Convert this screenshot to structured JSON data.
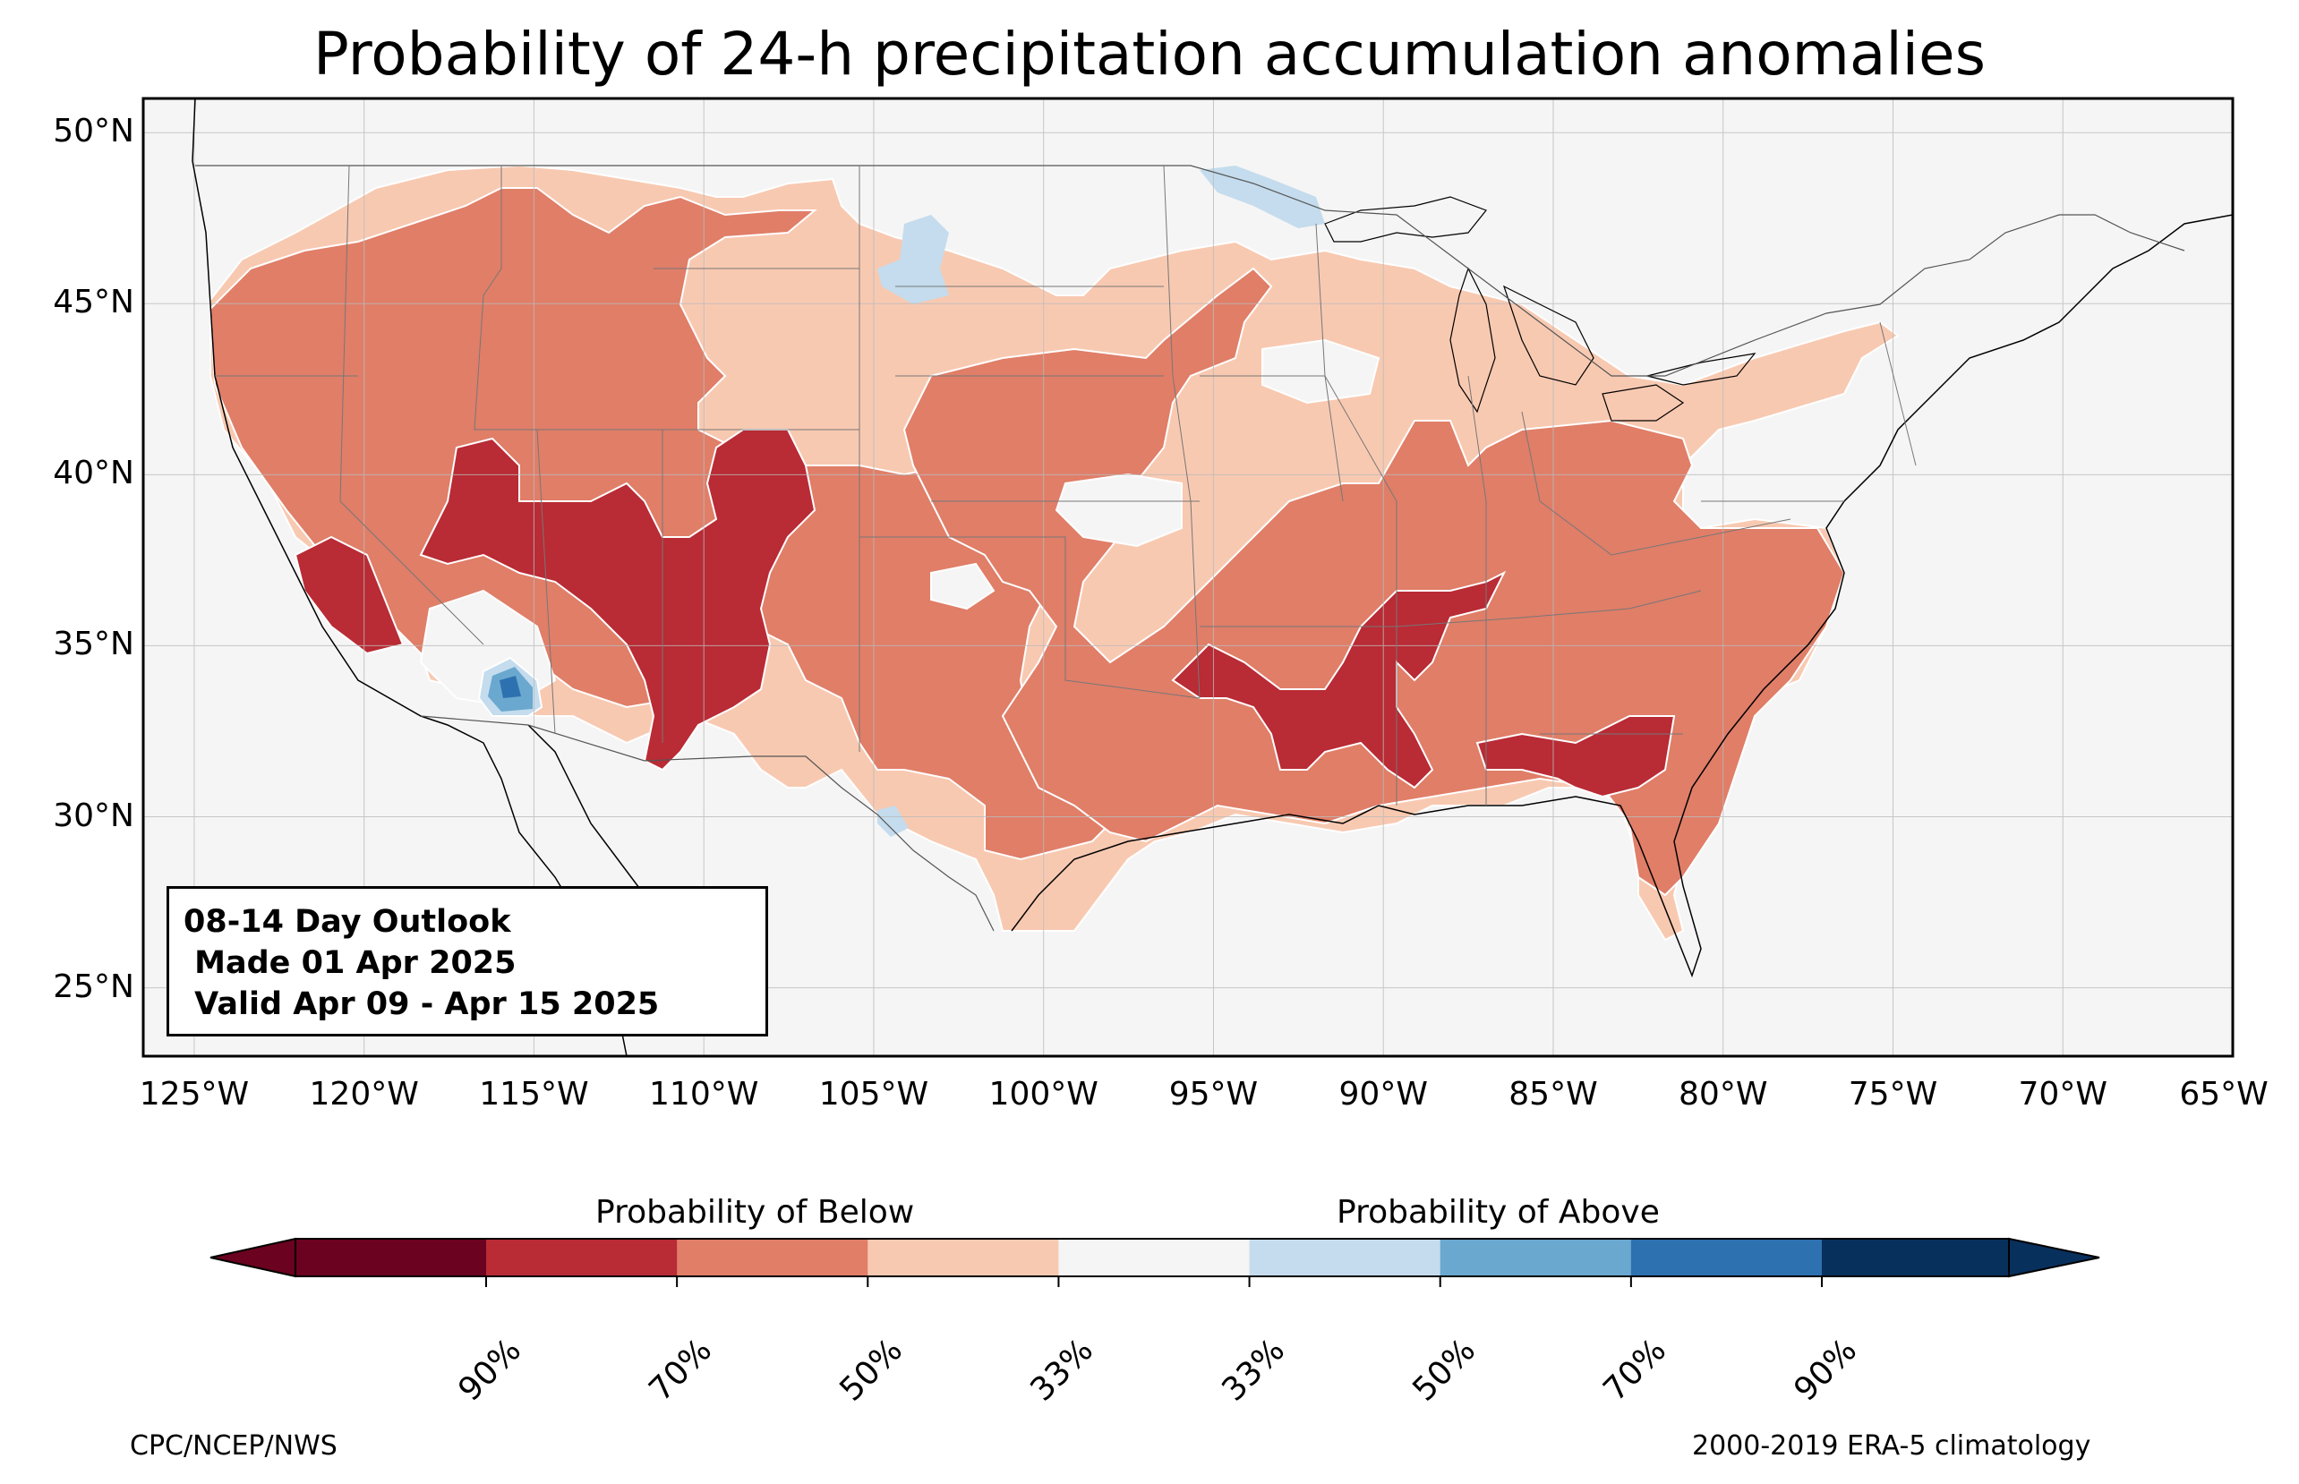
{
  "title": "Probability of 24-h precipitation accumulation anomalies",
  "map": {
    "lon_range": [
      -126.5,
      -65
    ],
    "lat_range": [
      23,
      51
    ],
    "y_ticks": [
      "50°N",
      "45°N",
      "40°N",
      "35°N",
      "30°N",
      "25°N"
    ],
    "y_tick_values": [
      50,
      45,
      40,
      35,
      30,
      25
    ],
    "x_ticks": [
      "125°W",
      "120°W",
      "115°W",
      "110°W",
      "105°W",
      "100°W",
      "95°W",
      "90°W",
      "85°W",
      "80°W",
      "75°W",
      "70°W",
      "65°W"
    ],
    "x_tick_values": [
      -125,
      -120,
      -115,
      -110,
      -105,
      -100,
      -95,
      -90,
      -85,
      -80,
      -75,
      -70,
      -65
    ],
    "gridlines": true,
    "ocean_color": "#f5f5f5"
  },
  "info_box": {
    "line1": "08-14 Day Outlook",
    "line2": " Made 01 Apr 2025",
    "line3": " Valid Apr 09 - Apr 15 2025"
  },
  "colorbar": {
    "label_below": "Probability of Below",
    "label_above": "Probability of Above",
    "colors": [
      "#67001f",
      "#b2182b",
      "#d6604d",
      "#f4a582",
      "#f7f7f7",
      "#bcd9ea",
      "#6aaed6",
      "#2c7bb6",
      "#053061"
    ],
    "bins": [
      "#b92b35",
      "#e07e68",
      "#f8c9b1",
      "#f5f5f5",
      "#c4dced",
      "#6aa8cf",
      "#2e71b0"
    ],
    "extend_low": "#6a0220",
    "extend_high": "#08305d",
    "tick_labels": [
      "90%",
      "70%",
      "50%",
      "33%",
      "33%",
      "50%",
      "70%",
      "90%"
    ]
  },
  "footer": {
    "left": "CPC/NCEP/NWS",
    "right": "2000-2019 ERA-5 climatology"
  },
  "legend_categories": [
    {
      "name": "Below 90%+",
      "color": "#6a0220"
    },
    {
      "name": "Below 70-90%",
      "color": "#b92b35"
    },
    {
      "name": "Below 50-70%",
      "color": "#e07e68"
    },
    {
      "name": "Below 33-50%",
      "color": "#f8c9b1"
    },
    {
      "name": "Near normal",
      "color": "#f5f5f5"
    },
    {
      "name": "Above 33-50%",
      "color": "#c4dced"
    },
    {
      "name": "Above 50-70%",
      "color": "#6aa8cf"
    },
    {
      "name": "Above 70-90%",
      "color": "#2e71b0"
    }
  ]
}
